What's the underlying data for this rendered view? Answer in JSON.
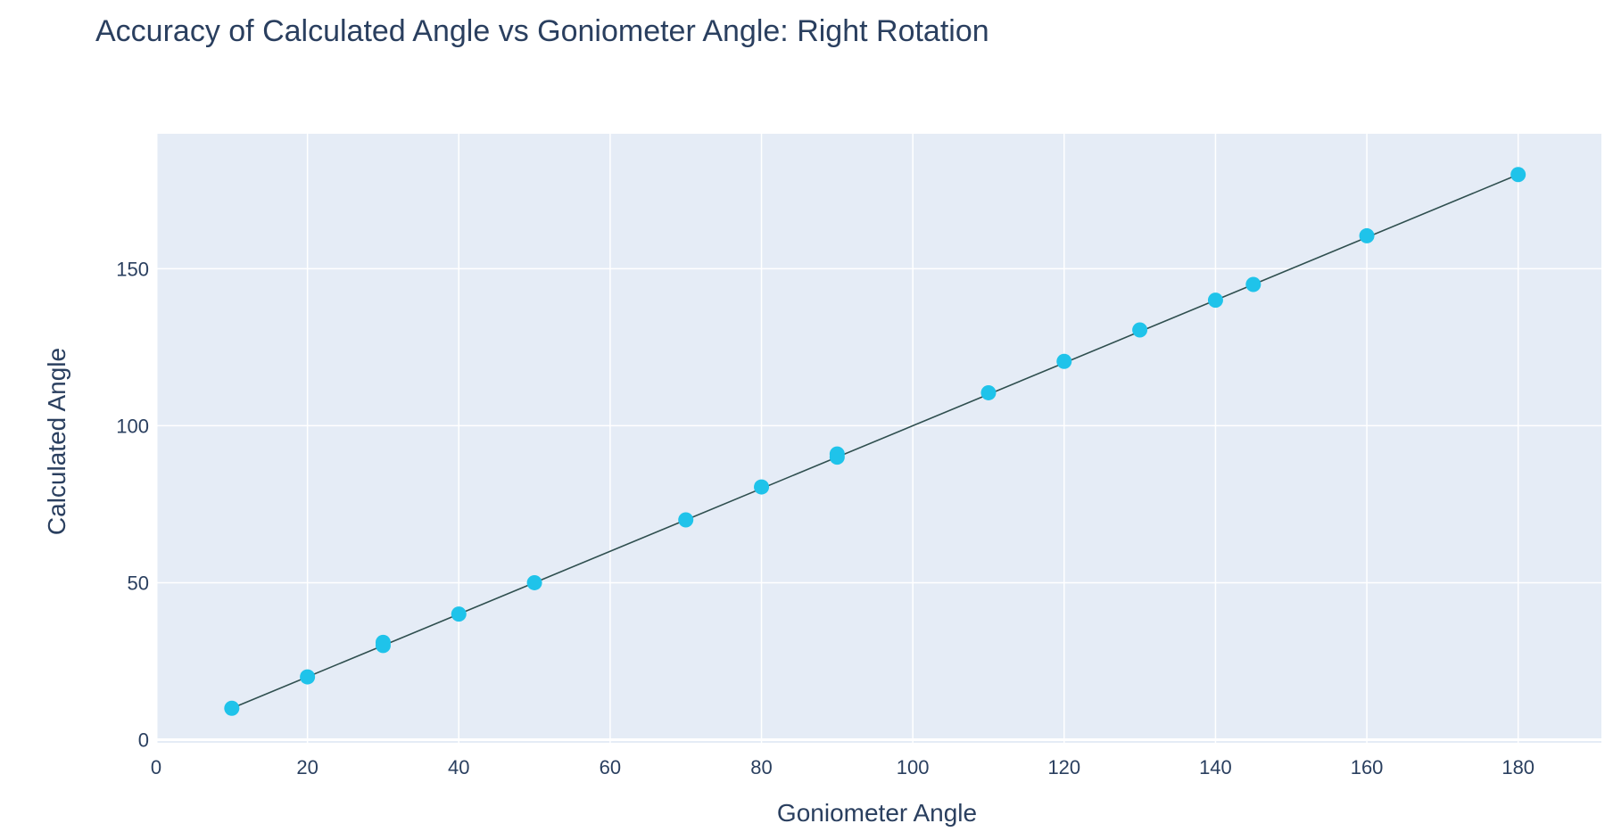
{
  "chart_data": {
    "type": "scatter",
    "title": "Accuracy of Calculated Angle vs Goniometer Angle: Right Rotation",
    "xlabel": "Goniometer Angle",
    "ylabel": "Calculated Angle",
    "xlim": [
      0,
      191
    ],
    "ylim": [
      -1,
      193
    ],
    "x_ticks": [
      0,
      20,
      40,
      60,
      80,
      100,
      120,
      140,
      160,
      180
    ],
    "y_ticks": [
      0,
      50,
      100,
      150
    ],
    "grid": true,
    "colors": {
      "plot_background": "#e5ecf6",
      "gridline": "#ffffff",
      "marker": "#1fc3ea",
      "fit_line": "#2f4f4f",
      "text": "#2a3f5f"
    },
    "series": [
      {
        "mode": "markers",
        "x": [
          10,
          20,
          30,
          30,
          40,
          50,
          70,
          80,
          90,
          90,
          110,
          120,
          130,
          140,
          145,
          160,
          180
        ],
        "y": [
          10,
          20,
          30,
          31,
          40,
          50,
          70,
          80.5,
          90,
          91,
          110.5,
          120.5,
          130.5,
          140,
          145,
          160.5,
          180
        ]
      },
      {
        "mode": "lines",
        "x": [
          10,
          180
        ],
        "y": [
          10,
          180
        ]
      }
    ]
  }
}
